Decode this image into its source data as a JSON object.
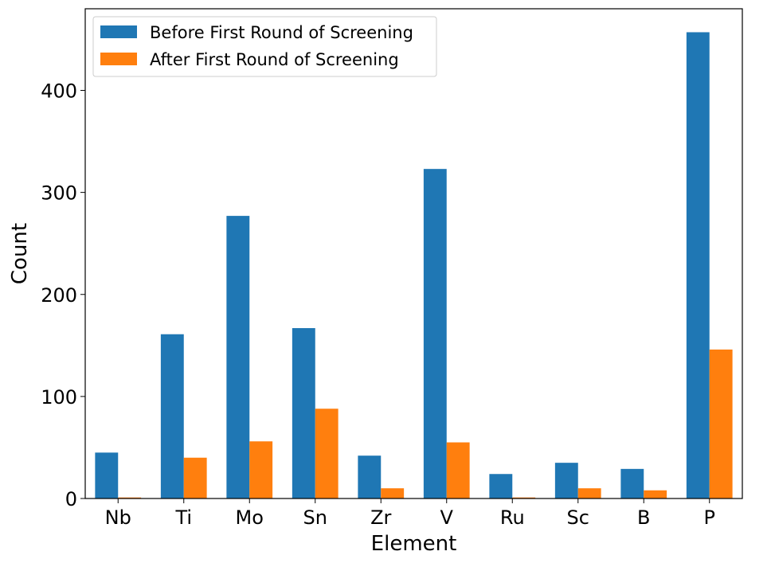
{
  "chart_data": {
    "type": "bar",
    "xlabel": "Element",
    "ylabel": "Count",
    "categories": [
      "Nb",
      "Ti",
      "Mo",
      "Sn",
      "Zr",
      "V",
      "Ru",
      "Sc",
      "B",
      "P"
    ],
    "series": [
      {
        "name": "Before First Round of Screening",
        "color": "#1f77b4",
        "values": [
          45,
          161,
          277,
          167,
          42,
          323,
          24,
          35,
          29,
          457
        ]
      },
      {
        "name": "After First Round of Screening",
        "color": "#ff7f0e",
        "values": [
          1,
          40,
          56,
          88,
          10,
          55,
          1,
          10,
          8,
          146
        ]
      }
    ],
    "yticks": [
      0,
      100,
      200,
      300,
      400
    ],
    "ylim": [
      0,
      480
    ],
    "grid": false,
    "legend_position": "top-left"
  }
}
